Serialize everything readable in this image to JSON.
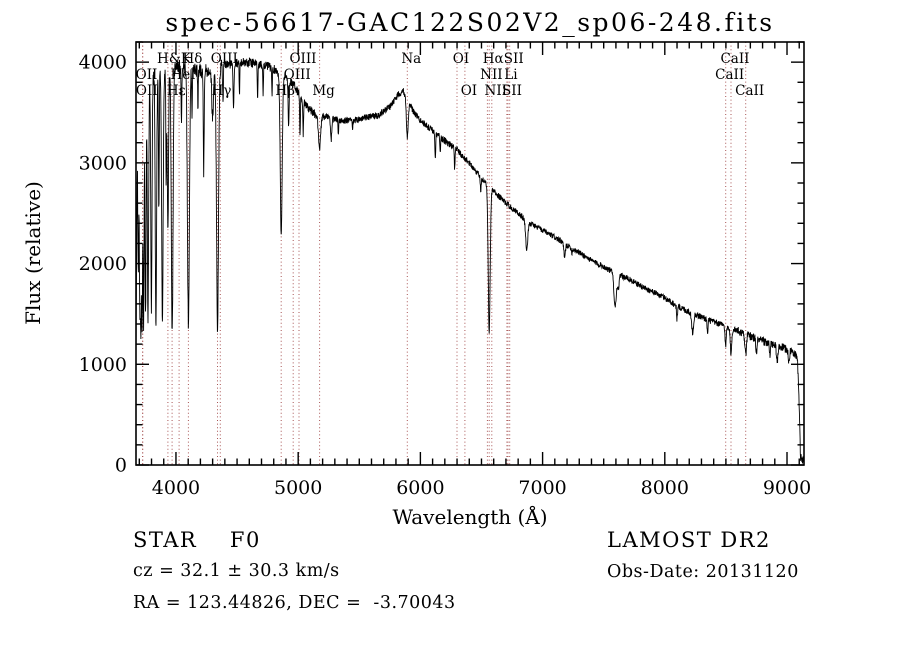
{
  "title": "spec-56617-GAC122S02V2_sp06-248.fits",
  "colors": {
    "background": "#ffffff",
    "spectrum": "#000000",
    "line_marker": "#a85454",
    "text": "#000000"
  },
  "annotations": {
    "class_label": "STAR    F0",
    "cz": "cz = 32.1 ± 30.3 km/s",
    "radec": "RA = 123.44826, DEC =  -3.70043",
    "survey": "LAMOST DR2",
    "obs_date": "Obs-Date: 20131120"
  },
  "chart_data": {
    "type": "line",
    "title": "spec-56617-GAC122S02V2_sp06-248.fits",
    "xlabel": "Wavelength (Å)",
    "ylabel": "Flux (relative)",
    "xlim": [
      3673,
      9139
    ],
    "ylim": [
      0,
      4200
    ],
    "x_ticks": [
      4000,
      5000,
      6000,
      7000,
      8000,
      9000
    ],
    "y_ticks": [
      0,
      1000,
      2000,
      3000,
      4000
    ],
    "x_minor_step": 100,
    "y_minor_step": 200,
    "grid": false,
    "legend": null,
    "line_markers": [
      3726,
      3729,
      3934,
      3968,
      4026,
      4102,
      4340,
      4363,
      4861,
      4959,
      5007,
      5175,
      5893,
      6300,
      6364,
      6548,
      6563,
      6584,
      6708,
      6717,
      6731,
      8498,
      8542,
      8662
    ],
    "line_labels": [
      {
        "label": "H&K",
        "wavelength": 3951,
        "row": 1
      },
      {
        "label": "Hδ",
        "wavelength": 4102,
        "row": 1
      },
      {
        "label": "OIII",
        "wavelength": 4363,
        "row": 1
      },
      {
        "label": "OIII",
        "wavelength": 5007,
        "row": 1
      },
      {
        "label": "Na",
        "wavelength": 5893,
        "row": 1
      },
      {
        "label": "OI",
        "wavelength": 6300,
        "row": 1
      },
      {
        "label": "Hα",
        "wavelength": 6563,
        "row": 1
      },
      {
        "label": "SII",
        "wavelength": 6731,
        "row": 1
      },
      {
        "label": "CaII",
        "wavelength": 8542,
        "row": 1
      },
      {
        "label": "OII",
        "wavelength": 3726,
        "row": 2
      },
      {
        "label": "HeI",
        "wavelength": 4026,
        "row": 2
      },
      {
        "label": "OIII",
        "wavelength": 4959,
        "row": 2
      },
      {
        "label": "NII",
        "wavelength": 6548,
        "row": 2
      },
      {
        "label": "Li",
        "wavelength": 6708,
        "row": 2
      },
      {
        "label": "CaII",
        "wavelength": 8498,
        "row": 2
      },
      {
        "label": "OII",
        "wavelength": 3729,
        "row": 3
      },
      {
        "label": "Hε",
        "wavelength": 3970,
        "row": 3
      },
      {
        "label": "Hγ",
        "wavelength": 4340,
        "row": 3
      },
      {
        "label": "Hβ",
        "wavelength": 4861,
        "row": 3
      },
      {
        "label": "Mg",
        "wavelength": 5175,
        "row": 3
      },
      {
        "label": "OI",
        "wavelength": 6364,
        "row": 3
      },
      {
        "label": "NII",
        "wavelength": 6584,
        "row": 3
      },
      {
        "label": "SII",
        "wavelength": 6717,
        "row": 3
      },
      {
        "label": "CaII",
        "wavelength": 8662,
        "row": 3
      }
    ],
    "continuum_points": [
      [
        3673,
        1000
      ],
      [
        3678,
        2200
      ],
      [
        3685,
        3200
      ],
      [
        3695,
        3600
      ],
      [
        3720,
        3700
      ],
      [
        3760,
        3800
      ],
      [
        3800,
        3850
      ],
      [
        3850,
        3900
      ],
      [
        3900,
        3920
      ],
      [
        3950,
        3930
      ],
      [
        4000,
        3950
      ],
      [
        4050,
        3960
      ],
      [
        4100,
        3940
      ],
      [
        4150,
        3930
      ],
      [
        4250,
        3920
      ],
      [
        4350,
        3960
      ],
      [
        4450,
        3980
      ],
      [
        4550,
        4000
      ],
      [
        4650,
        3990
      ],
      [
        4750,
        3960
      ],
      [
        4850,
        3900
      ],
      [
        4950,
        3800
      ],
      [
        5000,
        3700
      ],
      [
        5050,
        3600
      ],
      [
        5100,
        3520
      ],
      [
        5150,
        3470
      ],
      [
        5250,
        3450
      ],
      [
        5350,
        3420
      ],
      [
        5450,
        3420
      ],
      [
        5550,
        3450
      ],
      [
        5650,
        3470
      ],
      [
        5750,
        3560
      ],
      [
        5820,
        3680
      ],
      [
        5860,
        3720
      ],
      [
        5900,
        3600
      ],
      [
        5950,
        3500
      ],
      [
        6000,
        3420
      ],
      [
        6100,
        3320
      ],
      [
        6200,
        3220
      ],
      [
        6300,
        3130
      ],
      [
        6400,
        3000
      ],
      [
        6500,
        2850
      ],
      [
        6600,
        2720
      ],
      [
        6700,
        2600
      ],
      [
        6800,
        2500
      ],
      [
        6900,
        2400
      ],
      [
        7000,
        2330
      ],
      [
        7100,
        2260
      ],
      [
        7200,
        2180
      ],
      [
        7300,
        2110
      ],
      [
        7400,
        2030
      ],
      [
        7500,
        1970
      ],
      [
        7600,
        1900
      ],
      [
        7700,
        1850
      ],
      [
        7800,
        1780
      ],
      [
        7900,
        1720
      ],
      [
        8000,
        1660
      ],
      [
        8100,
        1580
      ],
      [
        8200,
        1520
      ],
      [
        8300,
        1470
      ],
      [
        8400,
        1420
      ],
      [
        8500,
        1380
      ],
      [
        8600,
        1330
      ],
      [
        8700,
        1280
      ],
      [
        8800,
        1230
      ],
      [
        8900,
        1190
      ],
      [
        9000,
        1150
      ],
      [
        9060,
        1120
      ],
      [
        9085,
        1060
      ],
      [
        9100,
        600
      ],
      [
        9110,
        80
      ],
      [
        9125,
        40
      ],
      [
        9139,
        100
      ]
    ],
    "absorption_features": [
      [
        3692,
        1900,
        4
      ],
      [
        3704,
        1700,
        4
      ],
      [
        3713,
        1500,
        4
      ],
      [
        3723,
        1450,
        4
      ],
      [
        3735,
        1400,
        4
      ],
      [
        3751,
        1450,
        4.5
      ],
      [
        3771,
        1400,
        5
      ],
      [
        3799,
        1500,
        5
      ],
      [
        3836,
        1350,
        5.5
      ],
      [
        3889,
        1400,
        6
      ],
      [
        3934,
        2350,
        5
      ],
      [
        3969,
        1300,
        7
      ],
      [
        4102,
        1400,
        8
      ],
      [
        4227,
        2900,
        3.5
      ],
      [
        4300,
        3450,
        7
      ],
      [
        4340,
        1350,
        8
      ],
      [
        4471,
        3550,
        3.5
      ],
      [
        4861,
        2300,
        8
      ],
      [
        5175,
        3150,
        9
      ],
      [
        5893,
        3250,
        7
      ],
      [
        6563,
        1330,
        8
      ],
      [
        6870,
        2150,
        9
      ],
      [
        7594,
        1580,
        10
      ],
      [
        7620,
        1750,
        6
      ],
      [
        8227,
        1320,
        8
      ],
      [
        8498,
        1180,
        5
      ],
      [
        8542,
        1100,
        6
      ],
      [
        8662,
        1090,
        6
      ],
      [
        3860,
        2500,
        3
      ],
      [
        3920,
        2800,
        3
      ],
      [
        4045,
        3350,
        3
      ],
      [
        4132,
        3450,
        2.5
      ],
      [
        4180,
        3500,
        2.5
      ],
      [
        4385,
        3550,
        3
      ],
      [
        4520,
        3700,
        2.5
      ],
      [
        4668,
        3650,
        3
      ],
      [
        4713,
        3700,
        2.5
      ],
      [
        4786,
        3650,
        2.5
      ],
      [
        4922,
        3350,
        4
      ],
      [
        5015,
        3280,
        3
      ],
      [
        5041,
        3300,
        3
      ],
      [
        5270,
        3230,
        5
      ],
      [
        5329,
        3300,
        3
      ],
      [
        5445,
        3320,
        3
      ],
      [
        6122,
        3020,
        3
      ],
      [
        6162,
        3080,
        3
      ],
      [
        6280,
        2950,
        3
      ],
      [
        6494,
        2700,
        3
      ],
      [
        7180,
        2060,
        6
      ],
      [
        7240,
        2110,
        4
      ],
      [
        8100,
        1450,
        4
      ],
      [
        8350,
        1300,
        4
      ],
      [
        8750,
        1120,
        5
      ],
      [
        8860,
        1080,
        4
      ],
      [
        8920,
        1020,
        6
      ],
      [
        9015,
        1000,
        5
      ]
    ],
    "noise_regions": [
      [
        3673,
        4400,
        75
      ],
      [
        4400,
        5150,
        45
      ],
      [
        5150,
        6400,
        33
      ],
      [
        6400,
        8000,
        28
      ],
      [
        8000,
        8600,
        33
      ],
      [
        8600,
        9139,
        42
      ]
    ],
    "noise_seed": 13
  }
}
